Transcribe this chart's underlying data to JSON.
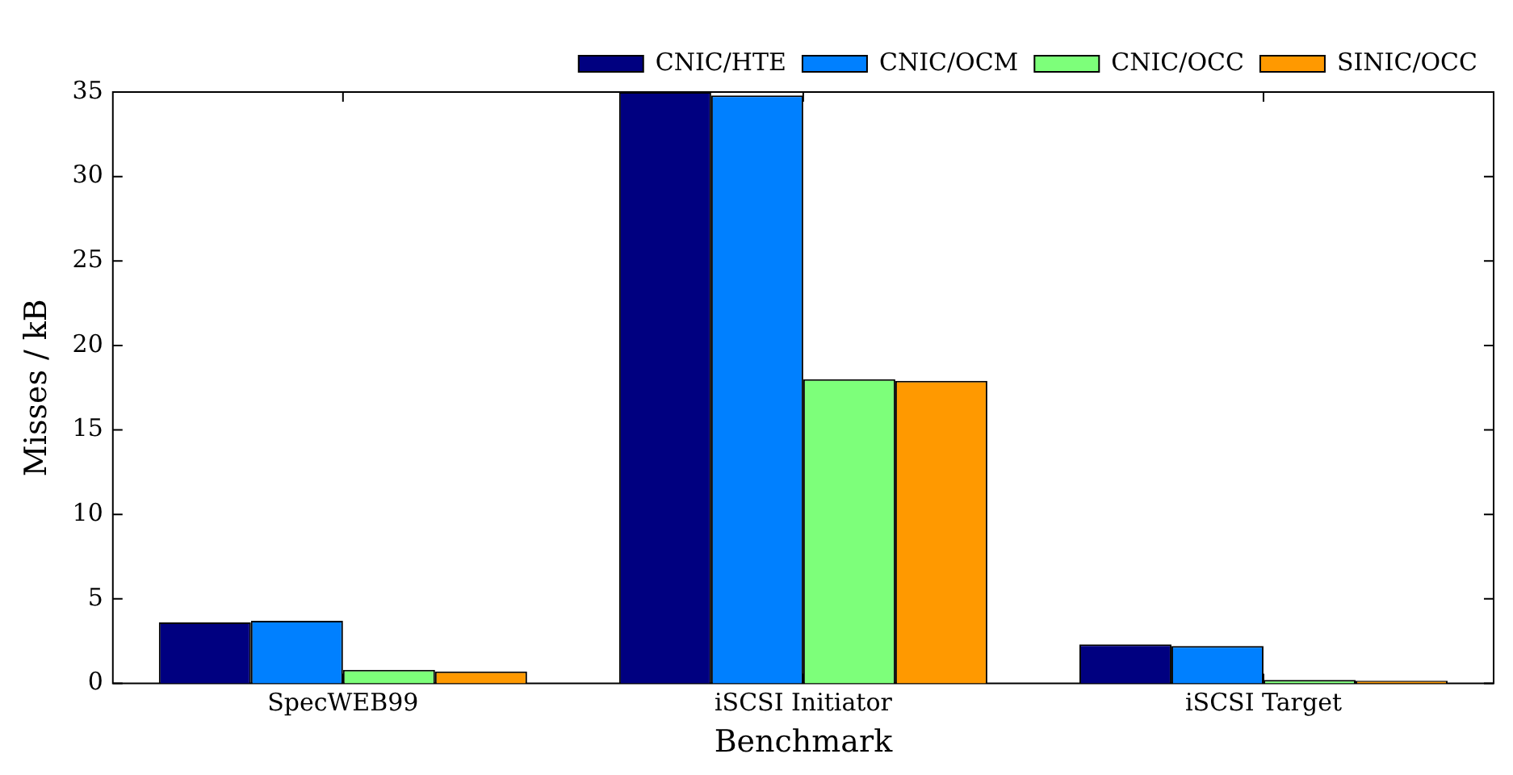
{
  "chart_data": {
    "type": "bar",
    "xlabel": "Benchmark",
    "ylabel": "Misses / kB",
    "categories": [
      "SpecWEB99",
      "iSCSI Initiator",
      "iSCSI Target"
    ],
    "series": [
      {
        "name": "CNIC/HTE",
        "color": "#000080",
        "values": [
          3.6,
          35,
          2.3
        ]
      },
      {
        "name": "CNIC/OCM",
        "color": "#0080ff",
        "values": [
          3.7,
          34.8,
          2.2
        ]
      },
      {
        "name": "CNIC/OCC",
        "color": "#7dff7a",
        "values": [
          0.8,
          18.0,
          0.2
        ]
      },
      {
        "name": "SINIC/OCC",
        "color": "#ff9900",
        "values": [
          0.7,
          17.9,
          0.15
        ]
      }
    ],
    "ylim": [
      0,
      35
    ],
    "yticks": [
      0,
      5,
      10,
      15,
      20,
      25,
      30,
      35
    ],
    "grid": false,
    "legend": "top right"
  }
}
